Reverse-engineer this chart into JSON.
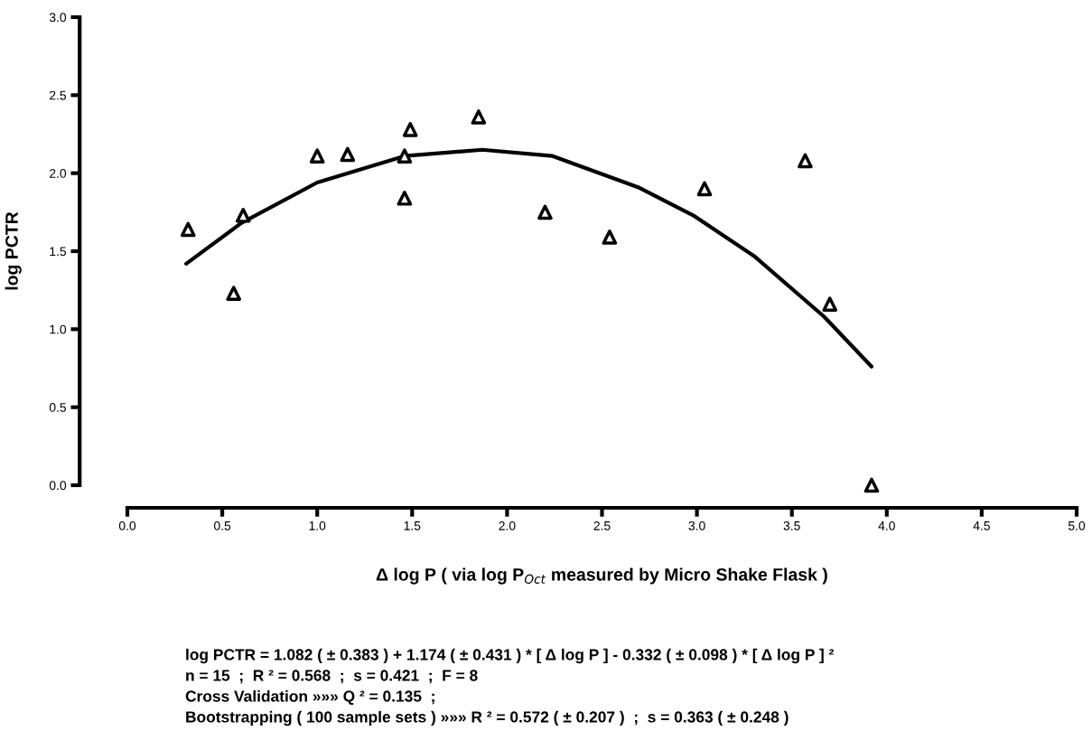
{
  "chart_data": {
    "type": "scatter",
    "xlabel": "Δ log P ( via log P$_{Oct}$ measured by Micro Shake Flask )",
    "ylabel": "log PCTR",
    "series": [
      {
        "color": "#000000",
        "marker": "triangle",
        "x": [
          0.32,
          0.56,
          0.61,
          1.0,
          1.16,
          1.46,
          1.49,
          1.46,
          1.85,
          2.2,
          2.54,
          3.04,
          3.57,
          3.7,
          3.92
        ],
        "values": [
          1.64,
          1.23,
          1.73,
          2.11,
          2.12,
          2.11,
          2.28,
          1.84,
          2.36,
          1.75,
          1.59,
          1.9,
          2.08,
          1.16,
          0.0
        ]
      },
      {
        "type": "line",
        "color": "#000000",
        "marker": "none",
        "line_style": "solid",
        "x": [
          0.31,
          0.6,
          1.0,
          1.46,
          1.87,
          2.24,
          2.69,
          2.98,
          3.3,
          3.67,
          3.92
        ],
        "values": [
          1.42,
          1.68,
          1.94,
          2.11,
          2.15,
          2.11,
          1.91,
          1.73,
          1.47,
          1.08,
          0.76
        ]
      }
    ],
    "xlim": [
      0,
      5
    ],
    "ylim": [
      0,
      3
    ],
    "xticks": [
      {
        "value": 0,
        "label": "0.0"
      },
      0.5,
      {
        "value": 1,
        "label": "1.0"
      },
      1.5,
      {
        "value": 2,
        "label": "2.0"
      },
      2.5,
      {
        "value": 3,
        "label": "3.0"
      },
      3.5,
      {
        "value": 4,
        "label": "4.0"
      },
      4.5,
      {
        "value": 5,
        "label": "5.0"
      }
    ],
    "yticks": [
      {
        "value": 0,
        "label": "0.0"
      },
      0.5,
      {
        "value": 1,
        "label": "1.0"
      },
      1.5,
      {
        "value": 2,
        "label": "2.0"
      },
      2.5,
      {
        "value": 3,
        "label": "3.0"
      }
    ],
    "grid": false,
    "legend": false,
    "annotations": [
      "log PCTR = 1.082 ( ± 0.383 ) + 1.174 ( ± 0.431 ) * [ Δ log P ] - 0.332 ( ± 0.098 ) * [ Δ log P ] ²",
      "n = 15  ;  R ² = 0.568  ;  s = 0.421  ;  F = 8",
      "Cross Validation »»» Q ² = 0.135  ;",
      "Bootstrapping ( 100 sample sets ) »»» R ² = 0.572 ( ± 0.207 )  ;  s = 0.363 ( ± 0.248 )"
    ]
  }
}
